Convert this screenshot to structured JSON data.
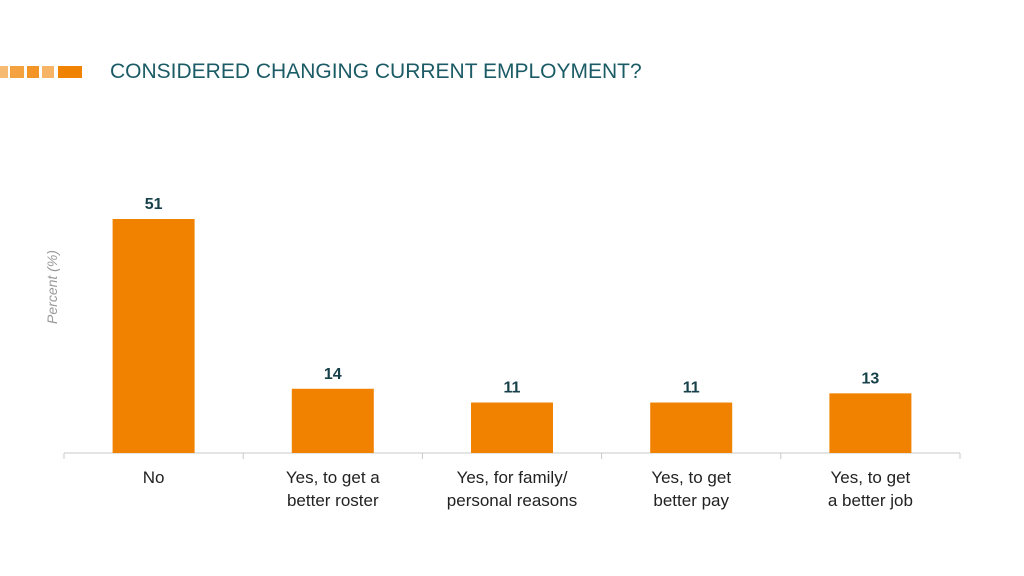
{
  "colors": {
    "bar": "#f08200",
    "title": "#1b5b66",
    "axis": "#c8c8c8"
  },
  "logo": {
    "icon": "striped-bar-logo-icon"
  },
  "chart_data": {
    "type": "bar",
    "title": "CONSIDERED CHANGING CURRENT EMPLOYMENT?",
    "ylabel": "Percent (%)",
    "xlabel": "",
    "categories": [
      [
        "No"
      ],
      [
        "Yes, to get a",
        "better roster"
      ],
      [
        "Yes, for family/",
        "personal reasons"
      ],
      [
        "Yes, to get",
        "better pay"
      ],
      [
        "Yes, to get",
        "a better job"
      ]
    ],
    "values": [
      51,
      14,
      11,
      11,
      13
    ],
    "ylim": [
      0,
      55
    ],
    "grid": false,
    "legend": "none"
  }
}
